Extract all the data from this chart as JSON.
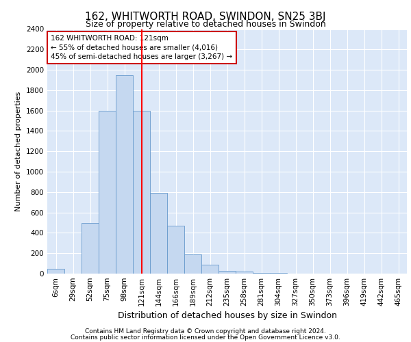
{
  "title": "162, WHITWORTH ROAD, SWINDON, SN25 3BJ",
  "subtitle": "Size of property relative to detached houses in Swindon",
  "xlabel": "Distribution of detached houses by size in Swindon",
  "ylabel": "Number of detached properties",
  "bar_color": "#c5d8f0",
  "bar_edge_color": "#6699cc",
  "categories": [
    "6sqm",
    "29sqm",
    "52sqm",
    "75sqm",
    "98sqm",
    "121sqm",
    "144sqm",
    "166sqm",
    "189sqm",
    "212sqm",
    "235sqm",
    "258sqm",
    "281sqm",
    "304sqm",
    "327sqm",
    "350sqm",
    "373sqm",
    "396sqm",
    "419sqm",
    "442sqm",
    "465sqm"
  ],
  "values": [
    50,
    0,
    500,
    1600,
    1950,
    1600,
    790,
    470,
    190,
    90,
    30,
    20,
    5,
    5,
    0,
    0,
    0,
    0,
    0,
    0,
    0
  ],
  "red_line_x": 5,
  "annotation_text": "162 WHITWORTH ROAD: 121sqm\n← 55% of detached houses are smaller (4,016)\n45% of semi-detached houses are larger (3,267) →",
  "annotation_box_color": "#ffffff",
  "annotation_box_edge": "#cc0000",
  "ylim": [
    0,
    2400
  ],
  "yticks": [
    0,
    200,
    400,
    600,
    800,
    1000,
    1200,
    1400,
    1600,
    1800,
    2000,
    2200,
    2400
  ],
  "background_color": "#dce8f8",
  "footer1": "Contains HM Land Registry data © Crown copyright and database right 2024.",
  "footer2": "Contains public sector information licensed under the Open Government Licence v3.0.",
  "grid_color": "#ffffff",
  "title_fontsize": 11,
  "subtitle_fontsize": 9,
  "xlabel_fontsize": 9,
  "ylabel_fontsize": 8,
  "tick_fontsize": 7.5,
  "annotation_fontsize": 7.5,
  "footer_fontsize": 6.5
}
